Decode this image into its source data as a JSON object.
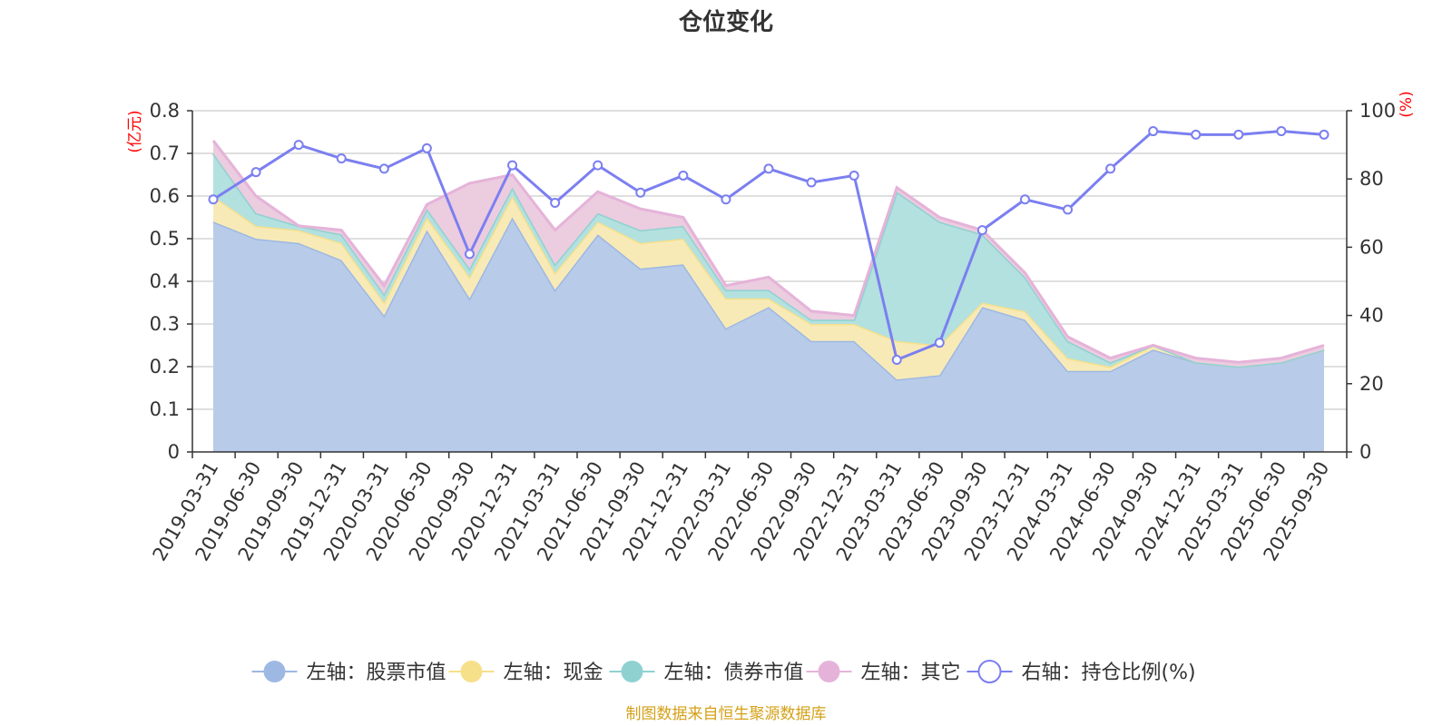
{
  "chart_data": {
    "type": "area",
    "title": "仓位变化",
    "left_axis_unit": "(亿元)",
    "right_axis_unit": "(%)",
    "source_note": "制图数据来自恒生聚源数据库",
    "categories": [
      "2019-03-31",
      "2019-06-30",
      "2019-09-30",
      "2019-12-31",
      "2020-03-31",
      "2020-06-30",
      "2020-09-30",
      "2020-12-31",
      "2021-03-31",
      "2021-06-30",
      "2021-09-30",
      "2021-12-31",
      "2022-03-31",
      "2022-06-30",
      "2022-09-30",
      "2022-12-31",
      "2023-03-31",
      "2023-06-30",
      "2023-09-30",
      "2023-12-31",
      "2024-03-31",
      "2024-06-30",
      "2024-09-30",
      "2024-12-31",
      "2025-03-31",
      "2025-06-30",
      "2025-09-30"
    ],
    "left_ylim": [
      0,
      0.8
    ],
    "left_ticks": [
      "0",
      "0.1",
      "0.2",
      "0.3",
      "0.4",
      "0.5",
      "0.6",
      "0.7",
      "0.8"
    ],
    "right_ylim": [
      0,
      100
    ],
    "right_ticks": [
      "0",
      "20",
      "40",
      "60",
      "80",
      "100"
    ],
    "stacked_series": [
      {
        "name": "左轴：股票市值",
        "color": "#9db8e3",
        "fill": "#b8cbe9",
        "values": [
          0.54,
          0.5,
          0.49,
          0.45,
          0.32,
          0.52,
          0.36,
          0.55,
          0.38,
          0.51,
          0.43,
          0.44,
          0.29,
          0.34,
          0.26,
          0.26,
          0.17,
          0.18,
          0.34,
          0.31,
          0.19,
          0.19,
          0.24,
          0.21,
          0.2,
          0.21,
          0.24
        ]
      },
      {
        "name": "左轴：现金",
        "color": "#f6e08a",
        "fill": "#f8eab7",
        "values": [
          0.06,
          0.03,
          0.03,
          0.04,
          0.03,
          0.03,
          0.05,
          0.05,
          0.04,
          0.03,
          0.06,
          0.06,
          0.07,
          0.02,
          0.04,
          0.04,
          0.09,
          0.07,
          0.01,
          0.02,
          0.03,
          0.01,
          0.01,
          0.0,
          0.0,
          0.0,
          0.0
        ]
      },
      {
        "name": "左轴：债券市值",
        "color": "#8fd1d1",
        "fill": "#b3e1df",
        "values": [
          0.1,
          0.03,
          0.01,
          0.02,
          0.02,
          0.02,
          0.02,
          0.02,
          0.02,
          0.02,
          0.03,
          0.03,
          0.02,
          0.02,
          0.01,
          0.01,
          0.35,
          0.29,
          0.16,
          0.08,
          0.04,
          0.01,
          0.0,
          0.0,
          0.0,
          0.0,
          0.0
        ]
      },
      {
        "name": "左轴：其它",
        "color": "#e5b3d9",
        "fill": "#ecccdf",
        "values": [
          0.03,
          0.04,
          0.0,
          0.01,
          0.02,
          0.01,
          0.2,
          0.03,
          0.08,
          0.05,
          0.05,
          0.02,
          0.01,
          0.03,
          0.02,
          0.01,
          0.01,
          0.01,
          0.01,
          0.01,
          0.01,
          0.01,
          0.0,
          0.01,
          0.01,
          0.01,
          0.01
        ]
      }
    ],
    "line_series": {
      "name": "右轴：持仓比例(%)",
      "color": "#7b7ff0",
      "values": [
        74,
        82,
        90,
        86,
        83,
        89,
        58,
        84,
        73,
        84,
        76,
        81,
        74,
        83,
        79,
        81,
        27,
        32,
        65,
        74,
        71,
        83,
        94,
        93,
        93,
        94,
        93
      ]
    }
  },
  "legend": {
    "items": [
      {
        "label": "左轴：股票市值",
        "color": "#9db8e3"
      },
      {
        "label": "左轴：现金",
        "color": "#f6e08a"
      },
      {
        "label": "左轴：债券市值",
        "color": "#8fd1d1"
      },
      {
        "label": "左轴：其它",
        "color": "#e5b3d9"
      },
      {
        "label": "右轴：持仓比例(%)",
        "color": "#7b7ff0"
      }
    ]
  },
  "colors": {
    "title": "#333333",
    "unit": "#ff0000",
    "source": "#d4a017",
    "grid": "#cccccc",
    "axis": "#333333"
  }
}
